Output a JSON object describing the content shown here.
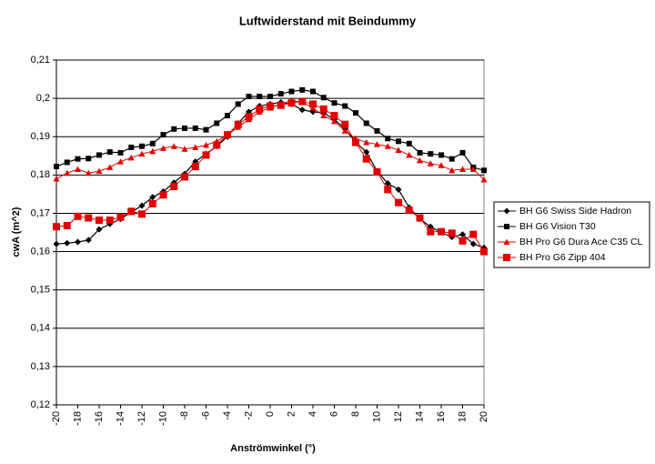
{
  "chart_data": {
    "type": "line",
    "title": "Luftwiderstand mit Beindummy",
    "x_label": "Anströmwinkel (°)",
    "y_label": "cwA (m^2)",
    "x": [
      -20,
      -19,
      -18,
      -17,
      -16,
      -15,
      -14,
      -13,
      -12,
      -11,
      -10,
      -9,
      -8,
      -7,
      -6,
      -5,
      -4,
      -3,
      -2,
      -1,
      0,
      1,
      2,
      3,
      4,
      5,
      6,
      7,
      8,
      9,
      10,
      11,
      12,
      13,
      14,
      15,
      16,
      17,
      18,
      19,
      20
    ],
    "xlim": [
      -20,
      20
    ],
    "xticks": [
      -20,
      -18,
      -16,
      -14,
      -12,
      -10,
      -8,
      -6,
      -4,
      -2,
      0,
      2,
      4,
      6,
      8,
      10,
      12,
      14,
      16,
      18,
      20
    ],
    "ylim": [
      0.12,
      0.21
    ],
    "yticks": [
      {
        "value": 0.12,
        "label": "0,12"
      },
      {
        "value": 0.13,
        "label": "0,13"
      },
      {
        "value": 0.14,
        "label": "0,14"
      },
      {
        "value": 0.15,
        "label": "0,15"
      },
      {
        "value": 0.16,
        "label": "0,16"
      },
      {
        "value": 0.17,
        "label": "0,17"
      },
      {
        "value": 0.18,
        "label": "0,18"
      },
      {
        "value": 0.19,
        "label": "0,19"
      },
      {
        "value": 0.2,
        "label": "0,2"
      },
      {
        "value": 0.21,
        "label": "0,21"
      }
    ],
    "grid": true,
    "legend": "right",
    "series": [
      {
        "name": "BH G6 Swiss Side Hadron",
        "color": "#000000",
        "marker": "diamond",
        "values": [
          0.162,
          0.1622,
          0.1625,
          0.163,
          0.1658,
          0.1672,
          0.1685,
          0.1703,
          0.172,
          0.1742,
          0.1757,
          0.178,
          0.1803,
          0.1835,
          0.1855,
          0.1875,
          0.19,
          0.1935,
          0.1965,
          0.198,
          0.1985,
          0.199,
          0.1985,
          0.197,
          0.1965,
          0.1962,
          0.1945,
          0.192,
          0.1885,
          0.186,
          0.181,
          0.1778,
          0.1762,
          0.1715,
          0.1685,
          0.1665,
          0.165,
          0.1638,
          0.1645,
          0.162,
          0.161
        ]
      },
      {
        "name": "BH G6 Vision T30",
        "color": "#000000",
        "marker": "square",
        "values": [
          0.1822,
          0.1833,
          0.1842,
          0.1843,
          0.1852,
          0.186,
          0.1858,
          0.1872,
          0.1875,
          0.1882,
          0.1905,
          0.192,
          0.1922,
          0.1922,
          0.1918,
          0.1935,
          0.1955,
          0.1985,
          0.2005,
          0.2005,
          0.2005,
          0.2012,
          0.2018,
          0.2022,
          0.2018,
          0.2002,
          0.1988,
          0.198,
          0.1962,
          0.1935,
          0.1915,
          0.1895,
          0.1888,
          0.1882,
          0.1858,
          0.1855,
          0.1852,
          0.1842,
          0.1858,
          0.182,
          0.1812
        ]
      },
      {
        "name": "BH Pro G6 Dura Ace C35 CL",
        "color": "#e00000",
        "marker": "triangle",
        "values": [
          0.179,
          0.1805,
          0.1815,
          0.1805,
          0.181,
          0.182,
          0.1835,
          0.1845,
          0.1855,
          0.1862,
          0.187,
          0.1875,
          0.1868,
          0.1872,
          0.1878,
          0.1888,
          0.1905,
          0.1925,
          0.1945,
          0.1965,
          0.1975,
          0.1985,
          0.1995,
          0.199,
          0.1975,
          0.1955,
          0.194,
          0.1915,
          0.1895,
          0.1885,
          0.188,
          0.1875,
          0.1865,
          0.1852,
          0.1838,
          0.183,
          0.1825,
          0.1812,
          0.1815,
          0.1815,
          0.1788
        ]
      },
      {
        "name": "BH Pro G6 Zipp 404",
        "color": "#e00000",
        "marker": "bigsquare",
        "values": [
          0.1665,
          0.1668,
          0.1692,
          0.1688,
          0.1682,
          0.1682,
          0.169,
          0.1705,
          0.1698,
          0.1725,
          0.1748,
          0.177,
          0.1795,
          0.1822,
          0.1852,
          0.1878,
          0.1905,
          0.1932,
          0.1952,
          0.1972,
          0.198,
          0.1982,
          0.1988,
          0.1992,
          0.1985,
          0.1972,
          0.1955,
          0.1932,
          0.1885,
          0.1842,
          0.1808,
          0.1762,
          0.1728,
          0.1708,
          0.1688,
          0.1652,
          0.1652,
          0.1648,
          0.1628,
          0.1645,
          0.16
        ]
      }
    ]
  }
}
